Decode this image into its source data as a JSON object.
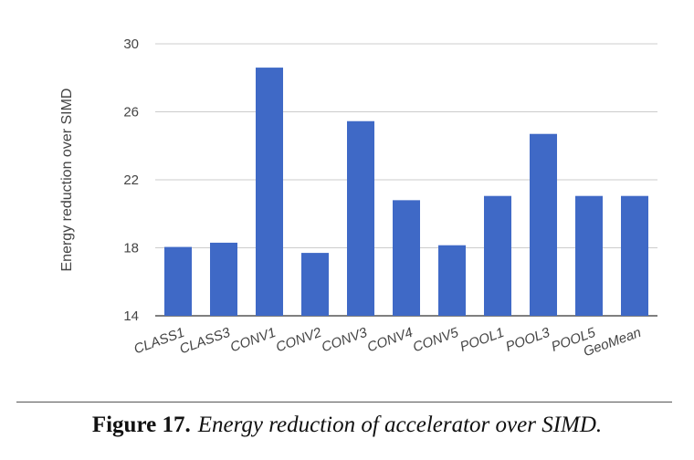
{
  "chart_data": {
    "type": "bar",
    "categories": [
      "CLASS1",
      "CLASS3",
      "CONV1",
      "CONV2",
      "CONV3",
      "CONV4",
      "CONV5",
      "POOL1",
      "POOL3",
      "POOL5",
      "GeoMean"
    ],
    "values": [
      18.05,
      18.3,
      28.6,
      17.7,
      25.45,
      20.8,
      18.15,
      21.05,
      24.7,
      21.05,
      21.05
    ],
    "title": "",
    "xlabel": "",
    "ylabel": "Energy reduction over SIMD",
    "ylim": [
      14,
      30
    ],
    "yticks": [
      14,
      18,
      22,
      26,
      30
    ],
    "grid": true,
    "bar_color": "#3f69c6"
  },
  "caption": {
    "label": "Figure 17.",
    "text": "Energy reduction of accelerator over SIMD."
  }
}
